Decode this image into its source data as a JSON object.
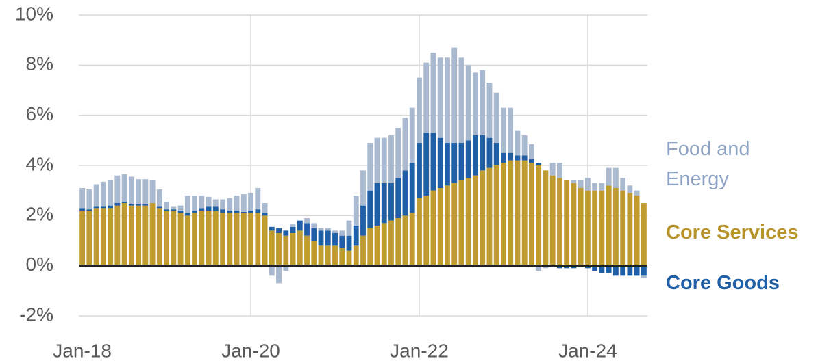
{
  "chart_data": {
    "type": "stacked_bar",
    "categories": [
      "Jan-18",
      null,
      null,
      null,
      null,
      null,
      null,
      null,
      null,
      null,
      null,
      null,
      null,
      null,
      null,
      null,
      null,
      null,
      null,
      null,
      null,
      null,
      null,
      null,
      "Jan-20",
      null,
      null,
      null,
      null,
      null,
      null,
      null,
      null,
      null,
      null,
      null,
      null,
      null,
      null,
      null,
      null,
      null,
      null,
      null,
      null,
      null,
      null,
      null,
      "Jan-22",
      null,
      null,
      null,
      null,
      null,
      null,
      null,
      null,
      null,
      null,
      null,
      null,
      null,
      null,
      null,
      null,
      null,
      null,
      null,
      null,
      null,
      null,
      null,
      "Jan-24",
      null,
      null,
      null,
      null,
      null,
      null,
      null,
      null
    ],
    "series": [
      {
        "name": "Core Services",
        "color": "#bf9b30",
        "values": [
          2.2,
          2.2,
          2.3,
          2.3,
          2.3,
          2.4,
          2.5,
          2.4,
          2.4,
          2.4,
          2.5,
          2.3,
          2.2,
          2.2,
          2.1,
          2.0,
          2.1,
          2.2,
          2.2,
          2.2,
          2.1,
          2.1,
          2.1,
          2.1,
          2.1,
          2.1,
          2.0,
          1.4,
          1.3,
          1.2,
          1.3,
          1.4,
          1.2,
          1.0,
          0.8,
          0.8,
          0.8,
          0.7,
          0.6,
          0.8,
          1.2,
          1.5,
          1.6,
          1.7,
          1.8,
          1.9,
          2.0,
          2.1,
          2.7,
          2.8,
          3.0,
          3.1,
          3.2,
          3.3,
          3.4,
          3.5,
          3.6,
          3.8,
          3.9,
          4.0,
          4.1,
          4.2,
          4.2,
          4.2,
          4.1,
          4.0,
          3.8,
          3.6,
          3.5,
          3.4,
          3.3,
          3.1,
          3.0,
          3.0,
          3.0,
          3.2,
          3.1,
          3.0,
          2.9,
          2.8,
          2.5
        ]
      },
      {
        "name": "Core Goods",
        "color": "#1f5fa6",
        "values": [
          0.1,
          0.05,
          0.05,
          0.05,
          0.1,
          0.1,
          0.05,
          0.05,
          0.05,
          0.05,
          0.0,
          0.05,
          0.05,
          0.05,
          0.1,
          0.1,
          0.1,
          0.1,
          0.15,
          0.15,
          0.15,
          0.1,
          0.1,
          0.05,
          0.1,
          0.15,
          0.1,
          0.15,
          0.2,
          0.2,
          0.25,
          0.4,
          0.5,
          0.5,
          0.6,
          0.6,
          0.5,
          0.5,
          0.6,
          0.8,
          1.2,
          1.5,
          1.7,
          1.6,
          1.5,
          1.6,
          1.8,
          2.0,
          2.2,
          2.5,
          2.3,
          2.0,
          1.7,
          1.6,
          1.5,
          1.5,
          1.6,
          1.4,
          1.2,
          0.9,
          0.4,
          0.3,
          0.2,
          0.2,
          0.15,
          0.1,
          0.0,
          -0.05,
          -0.1,
          -0.1,
          -0.1,
          -0.05,
          -0.1,
          -0.2,
          -0.3,
          -0.3,
          -0.4,
          -0.4,
          -0.4,
          -0.4,
          -0.4
        ]
      },
      {
        "name": "Food and Energy",
        "color": "#a9b9d0",
        "values": [
          0.8,
          0.8,
          0.9,
          1.0,
          1.0,
          1.1,
          1.1,
          1.1,
          1.0,
          1.0,
          0.9,
          0.7,
          0.3,
          0.1,
          0.2,
          0.7,
          0.6,
          0.5,
          0.4,
          0.3,
          0.4,
          0.5,
          0.6,
          0.7,
          0.7,
          0.85,
          0.4,
          -0.4,
          -0.7,
          -0.2,
          0.1,
          0.0,
          0.2,
          0.2,
          0.1,
          0.1,
          0.1,
          0.2,
          0.6,
          1.2,
          1.4,
          1.9,
          1.8,
          1.8,
          1.9,
          2.0,
          2.1,
          2.2,
          2.6,
          2.8,
          3.2,
          3.2,
          3.4,
          3.8,
          3.4,
          3.0,
          2.5,
          2.6,
          2.2,
          2.0,
          1.8,
          1.8,
          1.0,
          0.8,
          0.6,
          -0.2,
          -0.1,
          0.5,
          0.6,
          0.0,
          0.1,
          0.3,
          0.5,
          0.3,
          0.3,
          0.7,
          0.8,
          0.5,
          0.3,
          0.2,
          -0.1
        ]
      }
    ],
    "ylim": [
      -2,
      10
    ],
    "yticks": [
      {
        "value": -2,
        "label": "-2%"
      },
      {
        "value": 0,
        "label": "0%"
      },
      {
        "value": 2,
        "label": "2%"
      },
      {
        "value": 4,
        "label": "4%"
      },
      {
        "value": 6,
        "label": "6%"
      },
      {
        "value": 8,
        "label": "8%"
      },
      {
        "value": 10,
        "label": "10%"
      }
    ],
    "grid": true
  }
}
